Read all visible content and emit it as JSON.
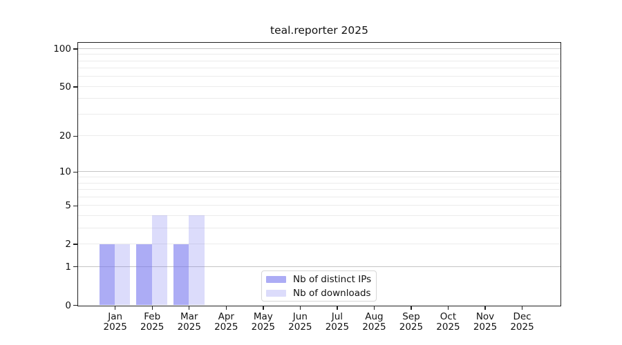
{
  "chart_data": {
    "type": "bar",
    "title": "teal.reporter 2025",
    "categories": [
      "Jan 2025",
      "Feb 2025",
      "Mar 2025",
      "Apr 2025",
      "May 2025",
      "Jun 2025",
      "Jul 2025",
      "Aug 2025",
      "Sep 2025",
      "Oct 2025",
      "Nov 2025",
      "Dec 2025"
    ],
    "series": [
      {
        "name": "Nb of distinct IPs",
        "color": "rgba(117,117,238,0.6)",
        "values": [
          2,
          2,
          2,
          0,
          0,
          0,
          0,
          0,
          0,
          0,
          0,
          0
        ]
      },
      {
        "name": "Nb of downloads",
        "color": "rgba(117,117,238,0.25)",
        "values": [
          2,
          4,
          4,
          0,
          0,
          0,
          0,
          0,
          0,
          0,
          0,
          0
        ]
      }
    ],
    "xlabel": "",
    "ylabel": "",
    "yscale": "log1p",
    "ylim": [
      0,
      111
    ],
    "yticks": [
      0,
      1,
      2,
      5,
      10,
      20,
      50,
      100
    ],
    "gridlines": {
      "major": [
        1,
        10,
        100
      ],
      "minor": [
        2,
        3,
        4,
        5,
        6,
        7,
        8,
        9,
        20,
        30,
        40,
        50,
        60,
        70,
        80,
        90
      ]
    },
    "grid": "horizontal",
    "legend_position": "lower-center-inside",
    "colors": {
      "bar_distinct_ips": "rgba(117,117,238,0.6)",
      "bar_downloads": "rgba(117,117,238,0.25)",
      "grid_major": "#c4c4c4",
      "grid_minor": "#ebebeb",
      "spine": "#1f1f1f",
      "text": "#111111",
      "background": "#ffffff"
    }
  }
}
